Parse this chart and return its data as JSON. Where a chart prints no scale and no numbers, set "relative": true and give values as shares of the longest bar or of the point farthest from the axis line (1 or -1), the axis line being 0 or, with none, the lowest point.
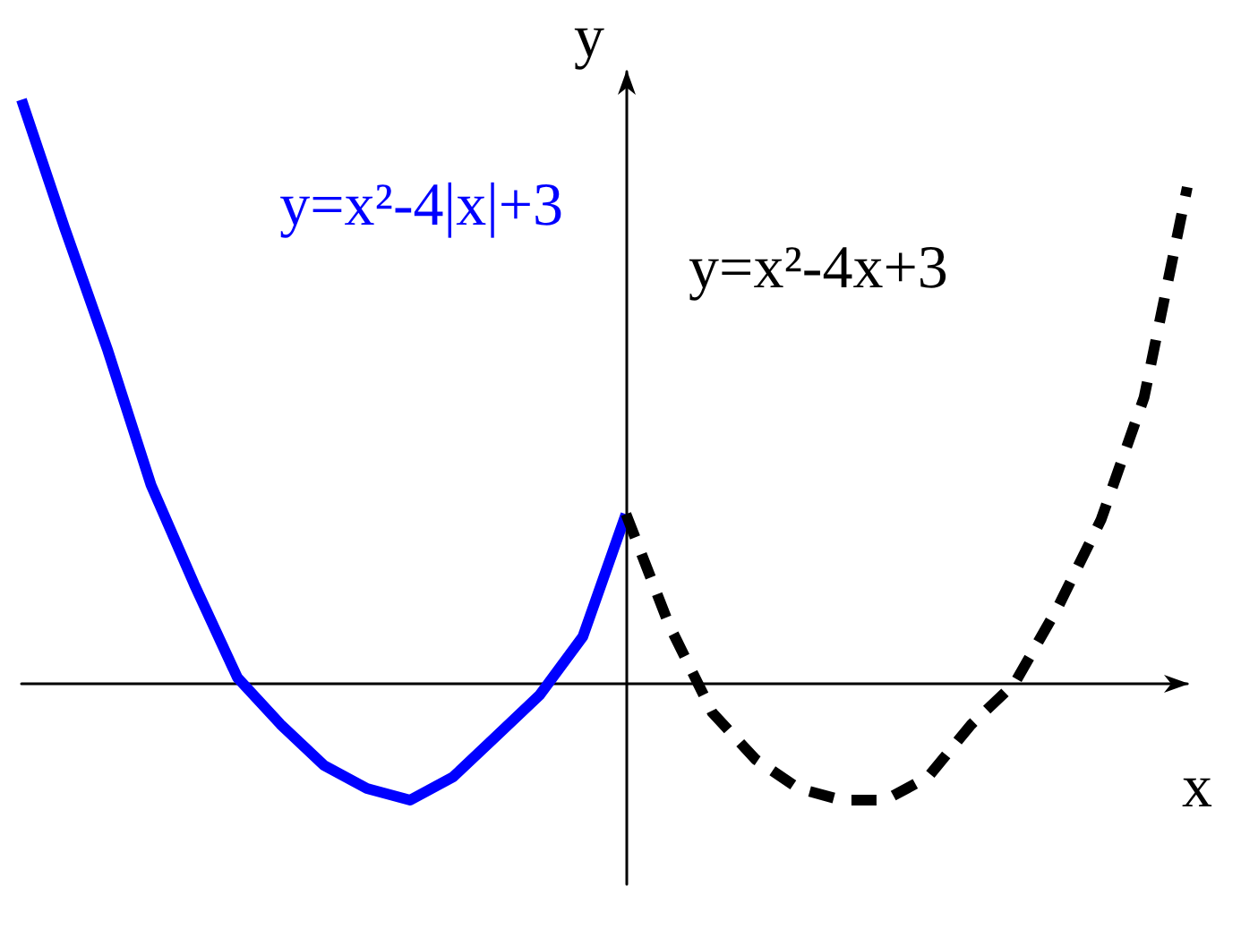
{
  "chart_data": {
    "type": "line",
    "relative": true,
    "xlabel": "x",
    "ylabel": "y",
    "tick_labels": false,
    "categories": [
      null,
      null,
      null,
      null,
      null,
      null,
      null,
      null,
      null,
      null,
      null,
      null,
      null,
      null,
      null,
      null,
      null,
      null,
      null,
      null,
      null,
      null,
      null,
      null,
      null,
      null,
      null,
      null
    ],
    "series": [
      {
        "name": "y=x²-4|x|+3",
        "color": "#0000ff",
        "line_style": "solid",
        "values": [
          1.0,
          0.78,
          0.57,
          0.34,
          0.17,
          0.01,
          -0.07,
          -0.14,
          -0.18,
          -0.2,
          -0.16,
          -0.09,
          -0.02,
          0.08,
          0.29,
          null,
          null,
          null,
          null,
          null,
          null,
          null,
          null,
          null,
          null,
          null,
          null,
          null
        ]
      },
      {
        "name": "y=x²-4x+3",
        "color": "#000000",
        "line_style": "dashed",
        "values": [
          null,
          null,
          null,
          null,
          null,
          null,
          null,
          null,
          null,
          null,
          null,
          null,
          null,
          null,
          0.29,
          0.1,
          -0.05,
          -0.13,
          -0.18,
          -0.2,
          -0.2,
          -0.16,
          -0.07,
          0.0,
          0.13,
          0.28,
          0.49,
          0.85
        ]
      }
    ]
  }
}
